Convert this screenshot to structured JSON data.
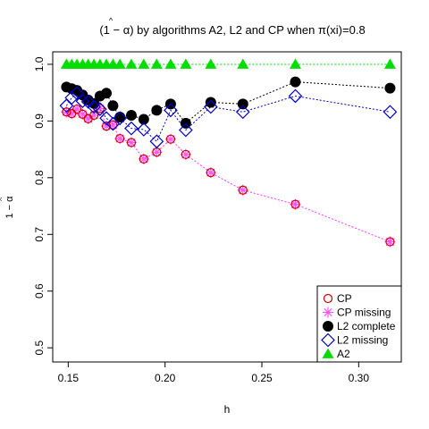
{
  "chart_data": {
    "type": "scatter",
    "title_text": "(1 − α̂) by algorithms A2, L2 and CP when π(xi)=0.8",
    "title_parts": {
      "prefix": "(1 − ",
      "alpha": "α",
      "hat": "^",
      "suffix": ") by algorithms A2, L2 and CP when ",
      "pi": "π",
      "pi_suffix": "(xi)=0.8"
    },
    "xlabel": "h",
    "ylabel_parts": {
      "prefix": "1 − ",
      "alpha": "α",
      "hat": "^"
    },
    "xlim": [
      0.142,
      0.322
    ],
    "ylim": [
      0.475,
      1.022
    ],
    "x_ticks": [
      0.15,
      0.2,
      0.25,
      0.3
    ],
    "x_tick_labels": [
      "0.15",
      "0.20",
      "0.25",
      "0.30"
    ],
    "y_ticks": [
      0.5,
      0.6,
      0.7,
      0.8,
      0.9,
      1.0
    ],
    "y_tick_labels": [
      "0.5",
      "0.6",
      "0.7",
      "0.8",
      "0.9",
      "1.0"
    ],
    "grid": false,
    "legend_position": "bottom-right",
    "legend": [
      {
        "label": "CP",
        "marker": "open-circle",
        "color": "#cc0000"
      },
      {
        "label": "CP missing",
        "marker": "asterisk",
        "color": "#ff55ff"
      },
      {
        "label": "L2 complete",
        "marker": "filled-circle",
        "color": "#000000"
      },
      {
        "label": "L2 missing",
        "marker": "open-diamond",
        "color": "#0000cc"
      },
      {
        "label": "A2",
        "marker": "filled-triangle",
        "color": "#00dd00"
      }
    ],
    "series": [
      {
        "key": "cp",
        "color": "#cc0000",
        "marker": "open-circle",
        "line": "#ff55ff",
        "x": [
          0.1491,
          0.1518,
          0.1545,
          0.1574,
          0.1603,
          0.1633,
          0.1664,
          0.1697,
          0.1731,
          0.1767,
          0.1826,
          0.189,
          0.1957,
          0.2029,
          0.2107,
          0.2236,
          0.2402,
          0.2673,
          0.3162
        ],
        "y": [
          0.916,
          0.913,
          0.921,
          0.912,
          0.904,
          0.91,
          0.922,
          0.891,
          0.893,
          0.869,
          0.862,
          0.833,
          0.845,
          0.868,
          0.841,
          0.809,
          0.778,
          0.753,
          0.687
        ]
      },
      {
        "key": "cp_missing",
        "color": "#ff55ff",
        "marker": "asterisk",
        "line": "#ff55ff",
        "x": [
          0.1491,
          0.1518,
          0.1545,
          0.1574,
          0.1603,
          0.1633,
          0.1664,
          0.1697,
          0.1731,
          0.1767,
          0.1826,
          0.189,
          0.1957,
          0.2029,
          0.2107,
          0.2236,
          0.2402,
          0.2673,
          0.3162
        ],
        "y": [
          0.916,
          0.913,
          0.921,
          0.912,
          0.904,
          0.91,
          0.922,
          0.891,
          0.893,
          0.869,
          0.862,
          0.833,
          0.845,
          0.868,
          0.841,
          0.809,
          0.778,
          0.753,
          0.687
        ]
      },
      {
        "key": "l2_complete",
        "color": "#000000",
        "marker": "filled-circle",
        "line": "#000000",
        "x": [
          0.1491,
          0.1518,
          0.1545,
          0.1574,
          0.1603,
          0.1633,
          0.1664,
          0.1697,
          0.1731,
          0.1767,
          0.1826,
          0.189,
          0.1957,
          0.2029,
          0.2107,
          0.2236,
          0.2402,
          0.2673,
          0.3162
        ],
        "y": [
          0.96,
          0.957,
          0.954,
          0.946,
          0.937,
          0.931,
          0.944,
          0.949,
          0.927,
          0.907,
          0.91,
          0.903,
          0.919,
          0.93,
          0.896,
          0.933,
          0.93,
          0.969,
          0.958
        ]
      },
      {
        "key": "l2_missing",
        "color": "#0000cc",
        "marker": "open-diamond",
        "line": "#0000cc",
        "x": [
          0.1491,
          0.1518,
          0.1545,
          0.1574,
          0.1603,
          0.1633,
          0.1664,
          0.1697,
          0.1731,
          0.1767,
          0.1826,
          0.189,
          0.1957,
          0.2029,
          0.2107,
          0.2236,
          0.2402,
          0.2673,
          0.3162
        ],
        "y": [
          0.927,
          0.941,
          0.949,
          0.935,
          0.934,
          0.925,
          0.921,
          0.905,
          0.895,
          0.905,
          0.887,
          0.885,
          0.864,
          0.919,
          0.884,
          0.925,
          0.916,
          0.944,
          0.916
        ]
      },
      {
        "key": "a2",
        "color": "#00dd00",
        "marker": "filled-triangle",
        "line": "#00dd00",
        "x": [
          0.1491,
          0.1518,
          0.1545,
          0.1574,
          0.1603,
          0.1633,
          0.1664,
          0.1697,
          0.1731,
          0.1767,
          0.1826,
          0.189,
          0.1957,
          0.2029,
          0.2107,
          0.2236,
          0.2402,
          0.2673,
          0.3162
        ],
        "y": [
          1.0,
          1.0,
          1.0,
          1.0,
          1.0,
          1.0,
          1.0,
          1.0,
          1.0,
          1.0,
          1.0,
          1.0,
          1.0,
          1.0,
          1.0,
          1.0,
          1.0,
          1.0,
          1.0
        ]
      }
    ]
  }
}
